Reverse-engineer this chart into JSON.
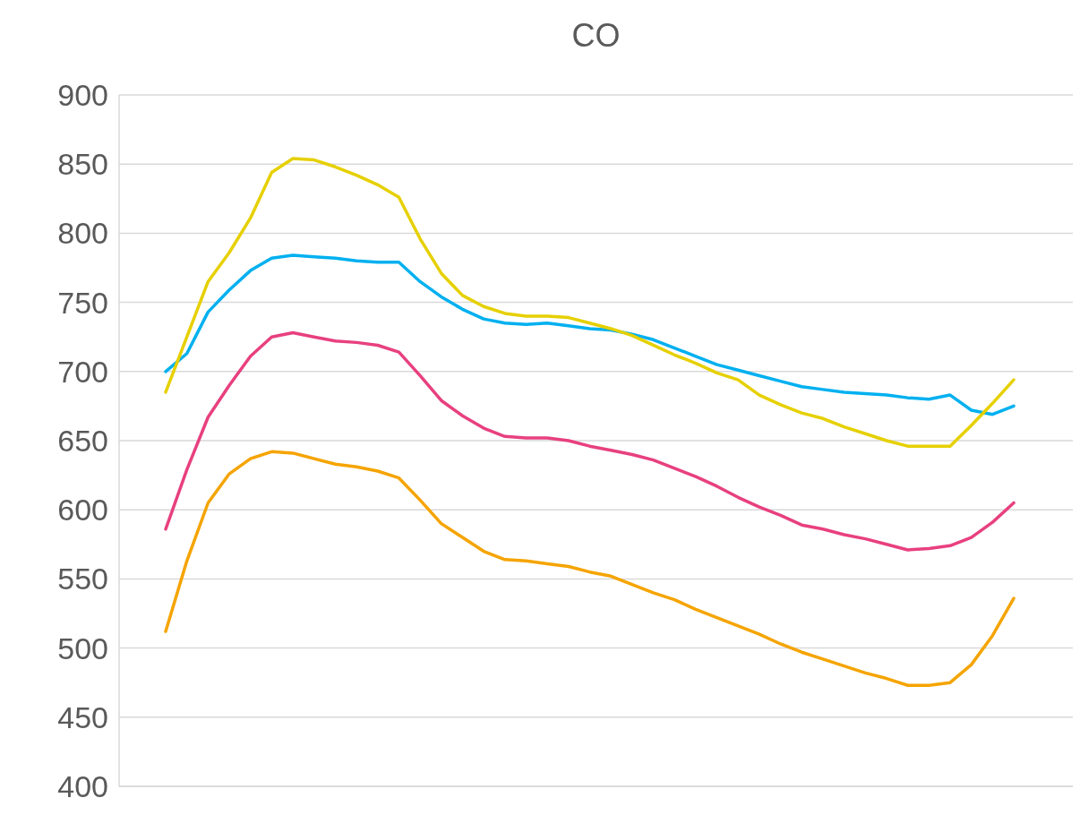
{
  "chart_data": {
    "type": "line",
    "title": "CO",
    "categories": [
      null,
      null,
      null,
      null,
      null,
      null,
      null,
      null,
      null,
      null,
      null,
      null,
      null,
      null,
      null,
      null,
      null,
      null,
      null,
      null,
      null,
      null,
      null,
      null,
      null,
      null,
      null,
      null,
      null,
      null,
      null,
      null,
      null,
      null,
      null,
      null,
      null,
      null,
      null,
      null,
      null
    ],
    "series": [
      {
        "color": "#00b0f0",
        "values": [
          700,
          713,
          743,
          759,
          773,
          782,
          784,
          783,
          782,
          780,
          779,
          779,
          765,
          754,
          745,
          738,
          735,
          734,
          735,
          733,
          731,
          730,
          727,
          723,
          717,
          711,
          705,
          701,
          697,
          693,
          689,
          687,
          685,
          684,
          683,
          681,
          680,
          683,
          672,
          669,
          675
        ]
      },
      {
        "color": "#e6d000",
        "values": [
          685,
          725,
          765,
          786,
          811,
          844,
          854,
          853,
          848,
          842,
          835,
          826,
          796,
          771,
          755,
          747,
          742,
          740,
          740,
          739,
          735,
          731,
          726,
          719,
          712,
          706,
          699,
          694,
          683,
          676,
          670,
          666,
          660,
          655,
          650,
          646,
          646,
          646,
          661,
          677,
          694
        ]
      },
      {
        "color": "#e8407f",
        "values": [
          586,
          629,
          667,
          690,
          711,
          725,
          728,
          725,
          722,
          721,
          719,
          714,
          697,
          679,
          668,
          659,
          653,
          652,
          652,
          650,
          646,
          643,
          640,
          636,
          630,
          624,
          617,
          609,
          602,
          596,
          589,
          586,
          582,
          579,
          575,
          571,
          572,
          574,
          580,
          591,
          605
        ]
      },
      {
        "color": "#f5a400",
        "values": [
          512,
          563,
          605,
          626,
          637,
          642,
          641,
          637,
          633,
          631,
          628,
          623,
          607,
          590,
          580,
          570,
          564,
          563,
          561,
          559,
          555,
          552,
          546,
          540,
          535,
          528,
          522,
          516,
          510,
          503,
          497,
          492,
          487,
          482,
          478,
          473,
          473,
          475,
          488,
          509,
          536
        ]
      }
    ],
    "ylim": [
      400,
      900
    ],
    "yticks": [
      400,
      450,
      500,
      550,
      600,
      650,
      700,
      750,
      800,
      850,
      900
    ],
    "grid": "y",
    "marker": "none",
    "line_style": "solid"
  }
}
